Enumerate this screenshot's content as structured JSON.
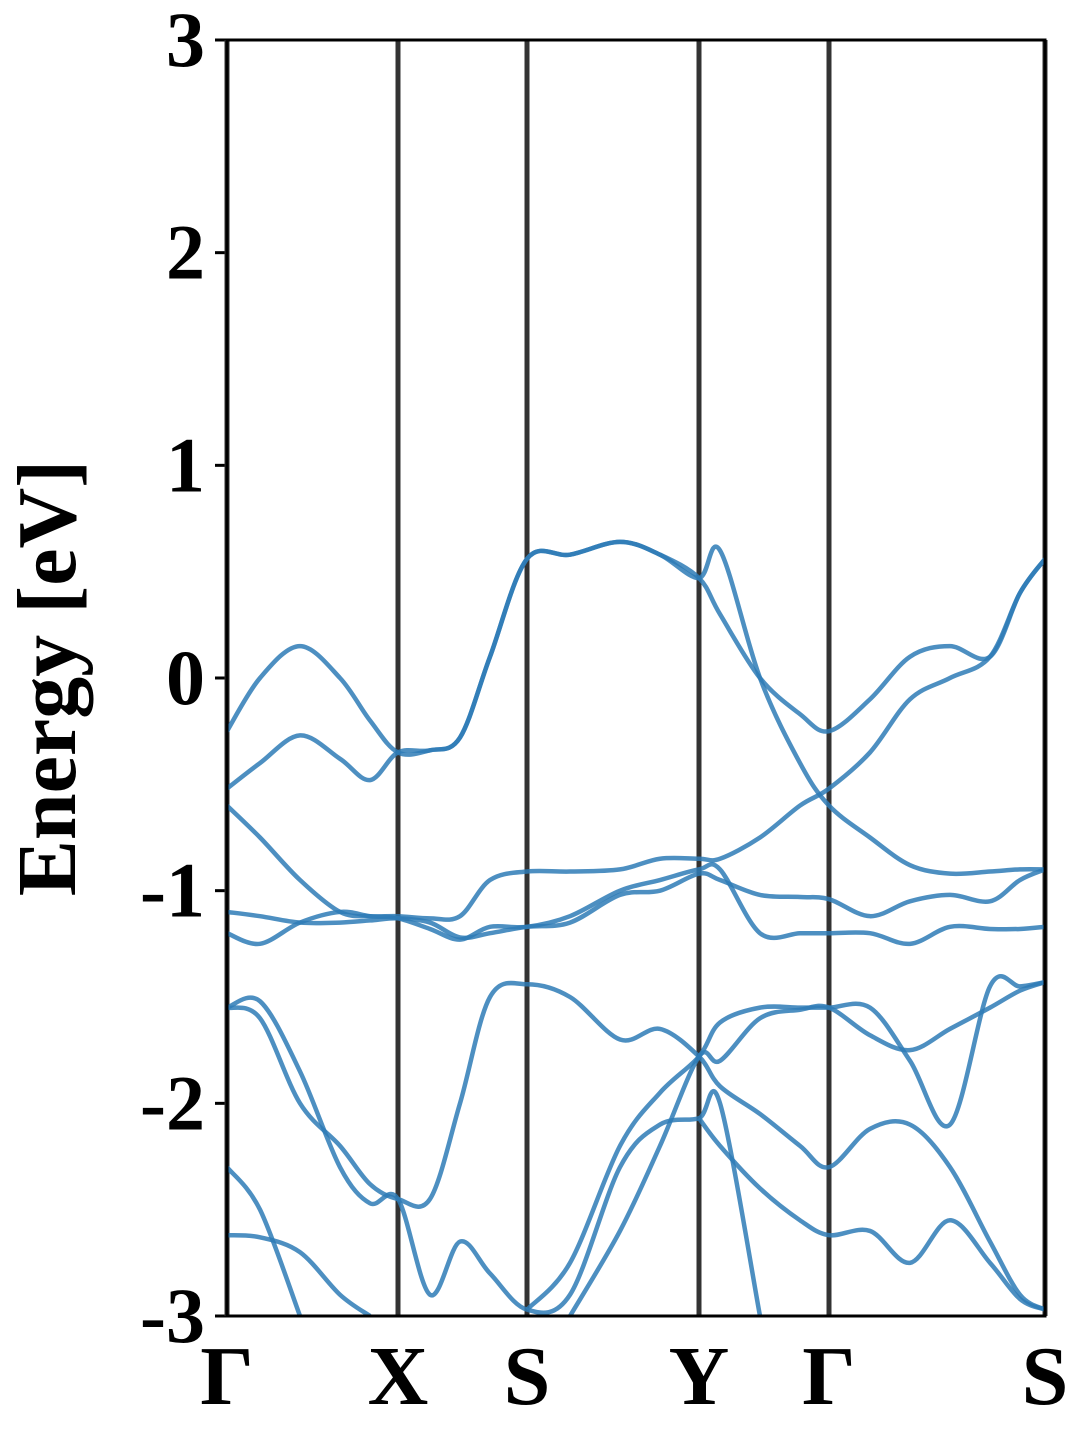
{
  "chart_data": {
    "type": "line",
    "ylabel": "Energy [eV]",
    "x": [
      0,
      0.33,
      0.73,
      1.13,
      1.43,
      1.71,
      2.03,
      2.33,
      2.63,
      3.0,
      3.43,
      3.93,
      4.33,
      4.72,
      4.93,
      5.33,
      5.73,
      6.02,
      6.43,
      6.83,
      7.23,
      7.63,
      7.93,
      8.18
    ],
    "xlim": [
      0,
      8.18
    ],
    "xticks": [
      {
        "value": 0,
        "label": "Γ"
      },
      {
        "value": 1.71,
        "label": "X"
      },
      {
        "value": 3.0,
        "label": "S"
      },
      {
        "value": 4.72,
        "label": "Y"
      },
      {
        "value": 6.02,
        "label": "Γ"
      },
      {
        "value": 8.18,
        "label": "S"
      }
    ],
    "ylim": [
      -3,
      3
    ],
    "yticks": [
      -3,
      -2,
      -1,
      0,
      1,
      2,
      3
    ],
    "grid": true,
    "series": [
      {
        "color": "#2e7bb6",
        "values": [
          -0.25,
          0.0,
          0.15,
          0.0,
          -0.2,
          -0.35,
          -0.34,
          -0.28,
          0.1,
          0.56,
          0.58,
          0.64,
          0.58,
          0.47,
          0.3,
          0.0,
          -0.17,
          -0.25,
          -0.1,
          0.1,
          0.15,
          0.1,
          0.4,
          0.56
        ]
      },
      {
        "color": "#2e7bb6",
        "values": [
          -0.52,
          -0.4,
          -0.27,
          -0.38,
          -0.48,
          -0.35,
          -0.34,
          -0.28,
          0.1,
          0.56,
          0.58,
          0.64,
          0.58,
          0.47,
          0.6,
          0.0,
          -0.4,
          -0.6,
          -0.75,
          -0.88,
          -0.92,
          -0.91,
          -0.9,
          -0.9
        ]
      },
      {
        "color": "#2e7bb6",
        "values": [
          -0.6,
          -0.75,
          -0.95,
          -1.1,
          -1.12,
          -1.12,
          -1.13,
          -1.12,
          -0.95,
          -0.91,
          -0.91,
          -0.9,
          -0.85,
          -0.85,
          -0.85,
          -0.75,
          -0.6,
          -0.52,
          -0.35,
          -0.1,
          0.0,
          0.1,
          0.4,
          0.56
        ]
      },
      {
        "color": "#2e7bb6",
        "values": [
          -1.1,
          -1.12,
          -1.15,
          -1.15,
          -1.14,
          -1.13,
          -1.15,
          -1.22,
          -1.2,
          -1.17,
          -1.15,
          -1.02,
          -1.0,
          -0.92,
          -0.95,
          -1.02,
          -1.03,
          -1.04,
          -1.12,
          -1.05,
          -1.02,
          -1.05,
          -0.95,
          -0.9
        ]
      },
      {
        "color": "#2e7bb6",
        "values": [
          -1.2,
          -1.25,
          -1.15,
          -1.1,
          -1.12,
          -1.13,
          -1.18,
          -1.23,
          -1.17,
          -1.17,
          -1.12,
          -1.0,
          -0.95,
          -0.9,
          -0.9,
          -1.2,
          -1.2,
          -1.2,
          -1.2,
          -1.25,
          -1.17,
          -1.18,
          -1.18,
          -1.17
        ]
      },
      {
        "color": "#2e7bb6",
        "values": [
          -1.55,
          -1.6,
          -2.0,
          -2.2,
          -2.38,
          -2.45,
          -2.45,
          -2.0,
          -1.5,
          -1.44,
          -1.5,
          -1.7,
          -1.65,
          -1.78,
          -1.92,
          -2.05,
          -2.2,
          -2.3,
          -2.12,
          -2.1,
          -2.3,
          -2.65,
          -2.9,
          -2.97
        ]
      },
      {
        "color": "#2e7bb6",
        "values": [
          -1.55,
          -1.52,
          -1.85,
          -2.3,
          -2.47,
          -2.45,
          -2.9,
          -2.65,
          -2.8,
          -2.97,
          -2.9,
          -2.3,
          -2.1,
          -2.07,
          -2.0,
          -3.0,
          null,
          null,
          null,
          null,
          null,
          null,
          null,
          null
        ]
      },
      {
        "color": "#2e7bb6",
        "values": [
          null,
          null,
          null,
          null,
          null,
          null,
          null,
          null,
          null,
          -2.97,
          -2.75,
          -2.2,
          -1.95,
          -1.78,
          -1.62,
          -1.55,
          -1.55,
          -1.55,
          -1.55,
          -1.8,
          -2.1,
          -1.45,
          -1.45,
          -1.43
        ]
      },
      {
        "color": "#2e7bb6",
        "values": [
          null,
          null,
          null,
          null,
          null,
          null,
          null,
          null,
          null,
          null,
          -3.0,
          -2.6,
          -2.2,
          -1.78,
          -1.8,
          -1.6,
          -1.56,
          -1.55,
          -1.68,
          -1.75,
          -1.65,
          -1.55,
          -1.47,
          -1.43
        ]
      },
      {
        "color": "#2e7bb6",
        "values": [
          -2.3,
          -2.5,
          -3.0,
          null,
          null,
          null,
          null,
          null,
          null,
          null,
          null,
          null,
          null,
          -2.07,
          -2.2,
          -2.4,
          -2.55,
          -2.62,
          -2.6,
          -2.75,
          -2.55,
          -2.75,
          -2.92,
          -2.97
        ]
      },
      {
        "color": "#2e7bb6",
        "values": [
          -2.62,
          -2.63,
          -2.7,
          -2.9,
          -3.0,
          null,
          null,
          null,
          null,
          null,
          null,
          null,
          null,
          null,
          null,
          null,
          null,
          null,
          null,
          null,
          null,
          null,
          null,
          null
        ]
      }
    ]
  }
}
